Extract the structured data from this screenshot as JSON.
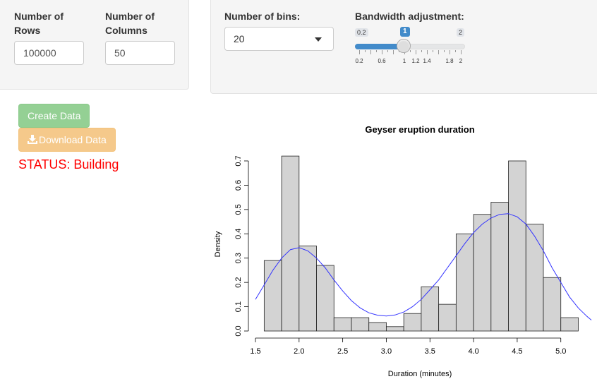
{
  "left_panel": {
    "rows_label_line1": "Number of",
    "rows_label_line2": "Rows",
    "rows_value": "100000",
    "cols_label_line1": "Number of",
    "cols_label_line2": "Columns",
    "cols_value": "50"
  },
  "right_panel": {
    "bins_label": "Number of bins:",
    "bins_selected": "20",
    "bandwidth_label": "Bandwidth adjustment:",
    "slider": {
      "min": 0.2,
      "max": 2,
      "value": 1,
      "min_label": "0.2",
      "max_label": "2",
      "value_label": "1",
      "tick_labels": [
        "0.2",
        "0.6",
        "1",
        "1.2",
        "1.4",
        "1.8",
        "2"
      ]
    }
  },
  "buttons": {
    "create_label": "Create Data",
    "download_label": "Download Data"
  },
  "status_text": "STATUS: Building",
  "colors": {
    "create_button": "#5cb85c",
    "download_button": "#f0ad4e",
    "status": "#ff0000",
    "slider_accent": "#428bca",
    "density_line": "#3333ff",
    "bar_fill": "#d3d3d3"
  },
  "chart_data": {
    "type": "bar",
    "title": "Geyser eruption duration",
    "xlabel": "Duration (minutes)",
    "ylabel": "Density",
    "xlim": [
      1.5,
      5.35
    ],
    "ylim": [
      0,
      0.7
    ],
    "x_ticks": [
      1.5,
      2.0,
      2.5,
      3.0,
      3.5,
      4.0,
      4.5,
      5.0
    ],
    "x_tick_labels": [
      "1.5",
      "2.0",
      "2.5",
      "3.0",
      "3.5",
      "4.0",
      "4.5",
      "5.0"
    ],
    "y_ticks": [
      0,
      0.1,
      0.2,
      0.3,
      0.4,
      0.5,
      0.6,
      0.7
    ],
    "y_tick_labels": [
      "0.0",
      "0.1",
      "0.2",
      "0.3",
      "0.4",
      "0.5",
      "0.6",
      "0.7"
    ],
    "bin_edges": [
      1.6,
      1.8,
      2.0,
      2.2,
      2.4,
      2.6,
      2.8,
      3.0,
      3.2,
      3.4,
      3.6,
      3.8,
      4.0,
      4.2,
      4.4,
      4.6,
      4.8,
      5.0,
      5.2
    ],
    "densities": [
      0.29,
      0.72,
      0.35,
      0.27,
      0.055,
      0.055,
      0.035,
      0.018,
      0.072,
      0.182,
      0.11,
      0.4,
      0.48,
      0.53,
      0.7,
      0.44,
      0.22,
      0.055
    ],
    "density_curve": {
      "x": [
        1.5,
        1.6,
        1.7,
        1.8,
        1.9,
        2.0,
        2.1,
        2.2,
        2.3,
        2.4,
        2.5,
        2.6,
        2.7,
        2.8,
        2.9,
        3.0,
        3.1,
        3.2,
        3.3,
        3.4,
        3.5,
        3.6,
        3.7,
        3.8,
        3.9,
        4.0,
        4.1,
        4.2,
        4.3,
        4.4,
        4.5,
        4.6,
        4.7,
        4.8,
        4.9,
        5.0,
        5.1,
        5.2,
        5.3,
        5.35
      ],
      "y": [
        0.13,
        0.19,
        0.25,
        0.3,
        0.335,
        0.343,
        0.33,
        0.3,
        0.26,
        0.21,
        0.165,
        0.125,
        0.095,
        0.075,
        0.065,
        0.062,
        0.066,
        0.078,
        0.1,
        0.13,
        0.17,
        0.21,
        0.26,
        0.31,
        0.36,
        0.405,
        0.44,
        0.465,
        0.48,
        0.483,
        0.47,
        0.44,
        0.39,
        0.33,
        0.26,
        0.2,
        0.14,
        0.095,
        0.06,
        0.045
      ]
    }
  }
}
